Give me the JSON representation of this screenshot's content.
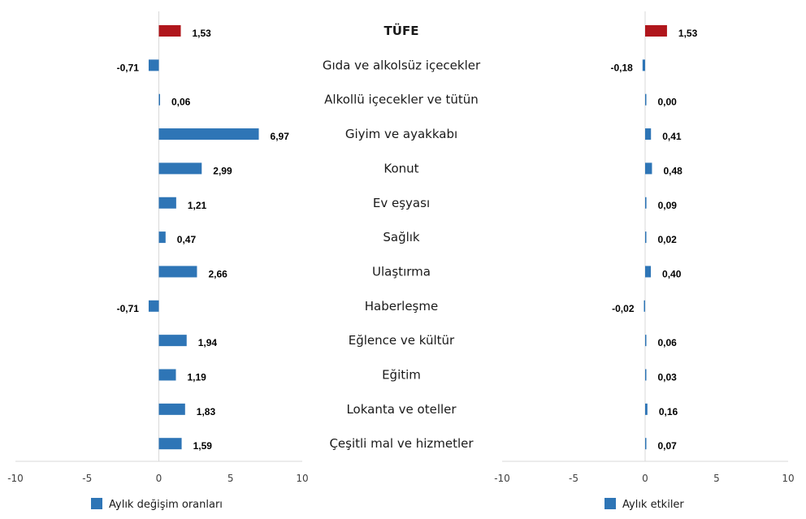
{
  "chart_data": {
    "type": "bar",
    "orientation": "horizontal",
    "categories": [
      "TÜFE",
      "Gıda ve alkolsüz içecekler",
      "Alkollü içecekler ve tütün",
      "Giyim ve ayakkabı",
      "Konut",
      "Ev eşyası",
      "Sağlık",
      "Ulaştırma",
      "Haberleşme",
      "Eğlence ve kültür",
      "Eğitim",
      "Lokanta ve oteller",
      "Çeşitli mal ve hizmetler"
    ],
    "highlight_index": 0,
    "xlim": [
      -10,
      10
    ],
    "xticks": [
      -10,
      -5,
      0,
      5,
      10
    ],
    "colors": {
      "bar": "#2e75b6",
      "highlight": "#b0161c",
      "axis": "#d9d9d9"
    },
    "series": [
      {
        "name": "Aylık değişim oranları",
        "values": [
          1.53,
          -0.71,
          0.06,
          6.97,
          2.99,
          1.21,
          0.47,
          2.66,
          -0.71,
          1.94,
          1.19,
          1.83,
          1.59
        ],
        "labels": [
          "1,53",
          "-0,71",
          "0,06",
          "6,97",
          "2,99",
          "1,21",
          "0,47",
          "2,66",
          "-0,71",
          "1,94",
          "1,19",
          "1,83",
          "1,59"
        ]
      },
      {
        "name": "Aylık etkiler",
        "values": [
          1.53,
          -0.18,
          0.0,
          0.41,
          0.48,
          0.09,
          0.02,
          0.4,
          -0.02,
          0.06,
          0.03,
          0.16,
          0.07
        ],
        "labels": [
          "1,53",
          "-0,18",
          "0,00",
          "0,41",
          "0,48",
          "0,09",
          "0,02",
          "0,40",
          "-0,02",
          "0,06",
          "0,03",
          "0,16",
          "0,07"
        ]
      }
    ]
  }
}
